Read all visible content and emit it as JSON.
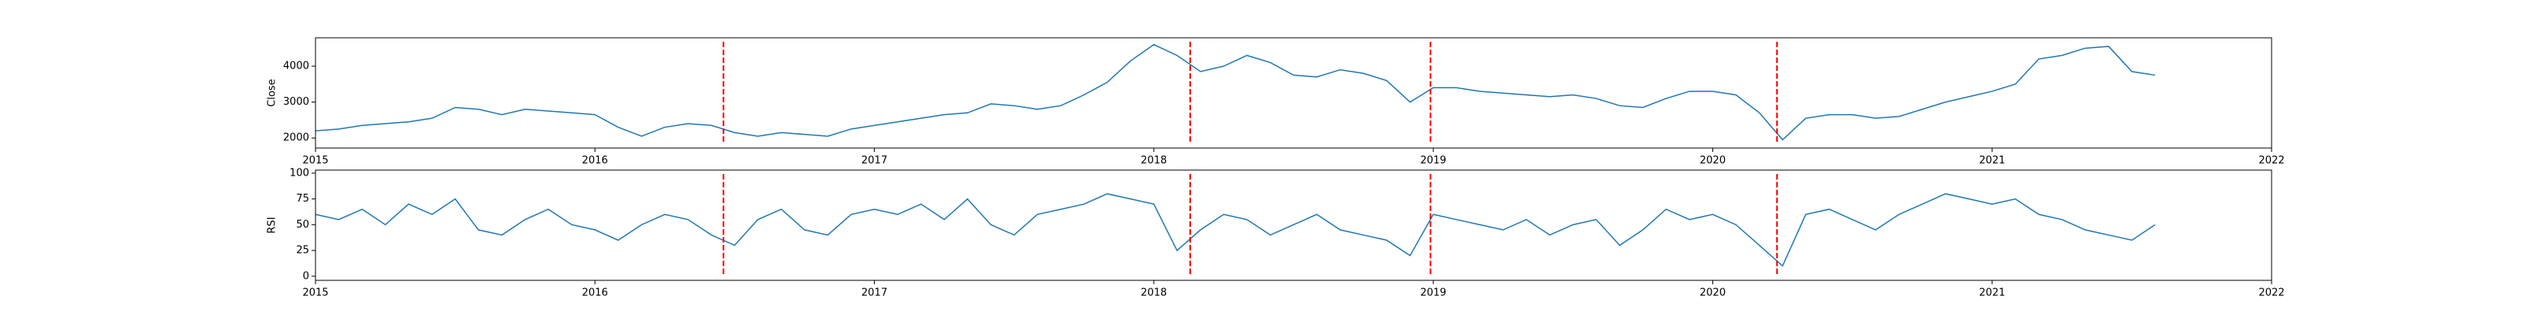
{
  "chart_data": [
    {
      "type": "line",
      "ylabel": "Close",
      "color": "#1f77b4",
      "x": [
        2015.0,
        2015.083,
        2015.167,
        2015.25,
        2015.333,
        2015.417,
        2015.5,
        2015.583,
        2015.667,
        2015.75,
        2015.833,
        2015.917,
        2016.0,
        2016.083,
        2016.167,
        2016.25,
        2016.333,
        2016.417,
        2016.5,
        2016.583,
        2016.667,
        2016.75,
        2016.833,
        2016.917,
        2017.0,
        2017.083,
        2017.167,
        2017.25,
        2017.333,
        2017.417,
        2017.5,
        2017.583,
        2017.667,
        2017.75,
        2017.833,
        2017.917,
        2018.0,
        2018.083,
        2018.167,
        2018.25,
        2018.333,
        2018.417,
        2018.5,
        2018.583,
        2018.667,
        2018.75,
        2018.833,
        2018.917,
        2019.0,
        2019.083,
        2019.167,
        2019.25,
        2019.333,
        2019.417,
        2019.5,
        2019.583,
        2019.667,
        2019.75,
        2019.833,
        2019.917,
        2020.0,
        2020.083,
        2020.167,
        2020.25,
        2020.333,
        2020.417,
        2020.5,
        2020.583,
        2020.667,
        2020.75,
        2020.833,
        2020.917,
        2021.0,
        2021.083,
        2021.167,
        2021.25,
        2021.333,
        2021.417,
        2021.5,
        2021.583
      ],
      "values": [
        2200,
        2250,
        2350,
        2400,
        2450,
        2550,
        2850,
        2800,
        2650,
        2800,
        2750,
        2700,
        2650,
        2300,
        2050,
        2300,
        2400,
        2350,
        2150,
        2050,
        2150,
        2100,
        2050,
        2250,
        2350,
        2450,
        2550,
        2650,
        2700,
        2950,
        2900,
        2800,
        2900,
        3200,
        3550,
        4150,
        4600,
        4300,
        3850,
        4000,
        4300,
        4100,
        3750,
        3700,
        3900,
        3800,
        3600,
        3000,
        3400,
        3400,
        3300,
        3250,
        3200,
        3150,
        3200,
        3100,
        2900,
        2850,
        3100,
        3300,
        3300,
        3200,
        2700,
        1950,
        2550,
        2650,
        2650,
        2550,
        2600,
        2800,
        3000,
        3150,
        3300,
        3500,
        4200,
        4300,
        4500,
        4550,
        3850,
        3750
      ],
      "xlim": [
        2015,
        2022
      ],
      "xticks": [
        2015,
        2016,
        2017,
        2018,
        2019,
        2020,
        2021,
        2022
      ],
      "ylim": [
        1720,
        4790
      ],
      "yticks": [
        2000,
        3000,
        4000
      ],
      "vlines": [
        2016.46,
        2018.13,
        2018.99,
        2020.23
      ],
      "vline_color": "#ff0000"
    },
    {
      "type": "line",
      "ylabel": "RSI",
      "color": "#1f77b4",
      "x": [
        2015.0,
        2015.083,
        2015.167,
        2015.25,
        2015.333,
        2015.417,
        2015.5,
        2015.583,
        2015.667,
        2015.75,
        2015.833,
        2015.917,
        2016.0,
        2016.083,
        2016.167,
        2016.25,
        2016.333,
        2016.417,
        2016.5,
        2016.583,
        2016.667,
        2016.75,
        2016.833,
        2016.917,
        2017.0,
        2017.083,
        2017.167,
        2017.25,
        2017.333,
        2017.417,
        2017.5,
        2017.583,
        2017.667,
        2017.75,
        2017.833,
        2017.917,
        2018.0,
        2018.083,
        2018.167,
        2018.25,
        2018.333,
        2018.417,
        2018.5,
        2018.583,
        2018.667,
        2018.75,
        2018.833,
        2018.917,
        2019.0,
        2019.083,
        2019.167,
        2019.25,
        2019.333,
        2019.417,
        2019.5,
        2019.583,
        2019.667,
        2019.75,
        2019.833,
        2019.917,
        2020.0,
        2020.083,
        2020.167,
        2020.25,
        2020.333,
        2020.417,
        2020.5,
        2020.583,
        2020.667,
        2020.75,
        2020.833,
        2020.917,
        2021.0,
        2021.083,
        2021.167,
        2021.25,
        2021.333,
        2021.417,
        2021.5,
        2021.583
      ],
      "values": [
        60,
        55,
        65,
        50,
        70,
        60,
        75,
        45,
        40,
        55,
        65,
        50,
        45,
        35,
        50,
        60,
        55,
        40,
        30,
        55,
        65,
        45,
        40,
        60,
        65,
        60,
        70,
        55,
        75,
        50,
        40,
        60,
        65,
        70,
        80,
        75,
        70,
        25,
        45,
        60,
        55,
        40,
        50,
        60,
        45,
        40,
        35,
        20,
        60,
        55,
        50,
        45,
        55,
        40,
        50,
        55,
        30,
        45,
        65,
        55,
        60,
        50,
        30,
        10,
        60,
        65,
        55,
        45,
        60,
        70,
        80,
        75,
        70,
        75,
        60,
        55,
        45,
        40,
        35,
        50
      ],
      "xlim": [
        2015,
        2022
      ],
      "xticks": [
        2015,
        2016,
        2017,
        2018,
        2019,
        2020,
        2021,
        2022
      ],
      "ylim": [
        -4,
        103
      ],
      "yticks": [
        0,
        25,
        50,
        75,
        100
      ],
      "vlines": [
        2016.46,
        2018.13,
        2018.99,
        2020.23
      ],
      "vline_color": "#ff0000"
    }
  ]
}
